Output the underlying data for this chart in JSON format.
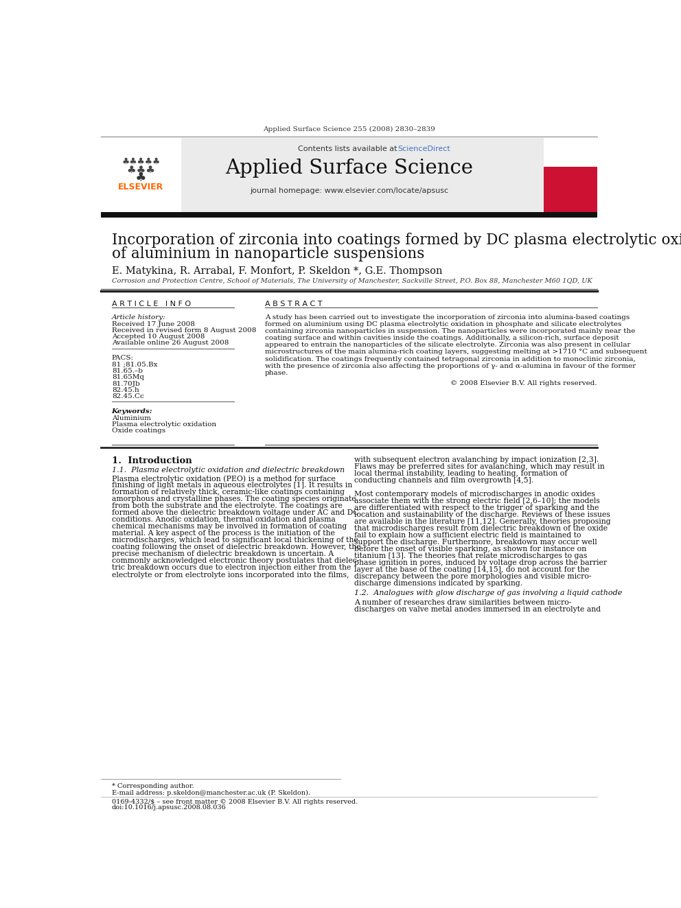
{
  "journal_ref": "Applied Surface Science 255 (2008) 2830–2839",
  "contents_line": "Contents lists available at ",
  "sciencedirect_text": "ScienceDirect",
  "journal_name": "Applied Surface Science",
  "journal_homepage": "journal homepage: www.elsevier.com/locate/apsusc",
  "paper_title_line1": "Incorporation of zirconia into coatings formed by DC plasma electrolytic oxidation",
  "paper_title_line2": "of aluminium in nanoparticle suspensions",
  "authors": "E. Matykina, R. Arrabal, F. Monfort, P. Skeldon *, G.E. Thompson",
  "affiliation": "Corrosion and Protection Centre, School of Materials, The University of Manchester, Sackville Street, P.O. Box 88, Manchester M60 1QD, UK",
  "article_info_header": "A R T I C L E   I N F O",
  "abstract_header": "A B S T R A C T",
  "article_history_label": "Article history:",
  "received1": "Received 17 June 2008",
  "received2": "Received in revised form 8 August 2008",
  "accepted": "Accepted 10 August 2008",
  "available": "Available online 26 August 2008",
  "pacs_label": "PACS:",
  "pacs_codes": [
    "81 ;81.05.Bx",
    "81.65.–b",
    "81.65Mq",
    "81.70Jb",
    "82.45.h",
    "82.45.Cc"
  ],
  "keywords_label": "Keywords:",
  "keywords": [
    "Aluminium",
    "Plasma electrolytic oxidation",
    "Oxide coatings"
  ],
  "abstract_lines": [
    "A study has been carried out to investigate the incorporation of zirconia into alumina-based coatings",
    "formed on aluminium using DC plasma electrolytic oxidation in phosphate and silicate electrolytes",
    "containing zirconia nanoparticles in suspension. The nanoparticles were incorporated mainly near the",
    "coating surface and within cavities inside the coatings. Additionally, a silicon-rich, surface deposit",
    "appeared to entrain the nanoparticles of the silicate electrolyte. Zirconia was also present in cellular",
    "microstructures of the main alumina-rich coating layers, suggesting melting at >1710 °C and subsequent",
    "solidification. The coatings frequently contained tetragonal zirconia in addition to monoclinic zirconia,",
    "with the presence of zirconia also affecting the proportions of γ- and α-alumina in favour of the former",
    "phase."
  ],
  "copyright": "© 2008 Elsevier B.V. All rights reserved.",
  "section1_title": "1.  Introduction",
  "subsection1_title": "1.1.  Plasma electrolytic oxidation and dielectric breakdown",
  "intro_left_lines": [
    "Plasma electrolytic oxidation (PEO) is a method for surface",
    "finishing of light metals in aqueous electrolytes [1]. It results in",
    "formation of relatively thick, ceramic-like coatings containing",
    "amorphous and crystalline phases. The coating species originate",
    "from both the substrate and the electrolyte. The coatings are",
    "formed above the dielectric breakdown voltage under AC and DC",
    "conditions. Anodic oxidation, thermal oxidation and plasma",
    "chemical mechanisms may be involved in formation of coating",
    "material. A key aspect of the process is the initiation of the",
    "microdischarges, which lead to significant local thickening of the",
    "coating following the onset of dielectric breakdown. However, the",
    "precise mechanism of dielectric breakdown is uncertain. A",
    "commonly acknowledged electronic theory postulates that dielec-",
    "tric breakdown occurs due to electron injection either from the",
    "electrolyte or from electrolyte ions incorporated into the films,"
  ],
  "intro_right_lines": [
    "with subsequent electron avalanching by impact ionization [2,3].",
    "Flaws may be preferred sites for avalanching, which may result in",
    "local thermal instability, leading to heating, formation of",
    "conducting channels and film overgrowth [4,5].",
    "",
    "Most contemporary models of microdischarges in anodic oxides",
    "associate them with the strong electric field [2,6–10]; the models",
    "are differentiated with respect to the trigger of sparking and the",
    "location and sustainability of the discharge. Reviews of these issues",
    "are available in the literature [11,12]. Generally, theories proposing",
    "that microdischarges result from dielectric breakdown of the oxide",
    "fail to explain how a sufficient electric field is maintained to",
    "support the discharge. Furthermore, breakdown may occur well",
    "before the onset of visible sparking, as shown for instance on",
    "titanium [13]. The theories that relate microdischarges to gas",
    "phase ignition in pores, induced by voltage drop across the barrier",
    "layer at the base of the coating [14,15], do not account for the",
    "discrepancy between the pore morphologies and visible micro-",
    "discharge dimensions indicated by sparking."
  ],
  "subsection2_title": "1.2.  Analogues with glow discharge of gas involving a liquid cathode",
  "subsection2_lines": [
    "A number of researches draw similarities between micro-",
    "discharges on valve metal anodes immersed in an electrolyte and"
  ],
  "footer_star": "* Corresponding author.",
  "footer_email": "E-mail address: p.skeldon@manchester.ac.uk (P. Skeldon).",
  "footer_copyright": "0169-4332/$ – see front matter © 2008 Elsevier B.V. All rights reserved.",
  "footer_doi": "doi:10.1016/j.apsusc.2008.08.036",
  "bg_color": "#ffffff",
  "sciencedirect_color": "#4472c4",
  "elsevier_orange": "#ff6600"
}
